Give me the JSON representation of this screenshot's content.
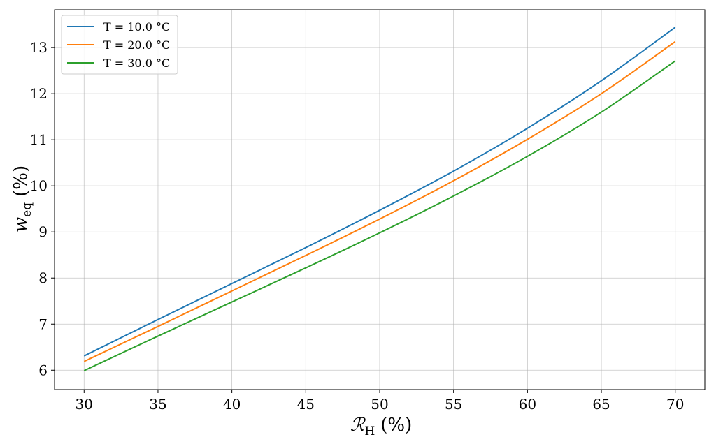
{
  "chart_data": {
    "type": "line",
    "xlabel": {
      "symbol": "ℛ",
      "subscript": "H",
      "unit": "(%)"
    },
    "ylabel": {
      "symbol": "w",
      "subscript": "eq",
      "unit": "(%)"
    },
    "xlim": [
      28,
      72
    ],
    "ylim": [
      5.58,
      13.82
    ],
    "xticks": [
      30,
      35,
      40,
      45,
      50,
      55,
      60,
      65,
      70
    ],
    "yticks": [
      6,
      7,
      8,
      9,
      10,
      11,
      12,
      13
    ],
    "grid": true,
    "legend_position": "top-left",
    "x": [
      30,
      35,
      40,
      45,
      50,
      55,
      60,
      65,
      70
    ],
    "series": [
      {
        "name": "T = 10.0 °C",
        "color": "#1f77b4",
        "values": [
          6.31,
          7.1,
          7.88,
          8.66,
          9.47,
          10.32,
          11.25,
          12.28,
          13.44
        ]
      },
      {
        "name": "T = 20.0 °C",
        "color": "#ff7f0e",
        "values": [
          6.19,
          6.95,
          7.72,
          8.49,
          9.28,
          10.11,
          11.01,
          12.0,
          13.13
        ]
      },
      {
        "name": "T = 30.0 °C",
        "color": "#2ca02c",
        "values": [
          5.99,
          6.74,
          7.48,
          8.22,
          8.98,
          9.78,
          10.64,
          11.6,
          12.71
        ]
      }
    ]
  }
}
